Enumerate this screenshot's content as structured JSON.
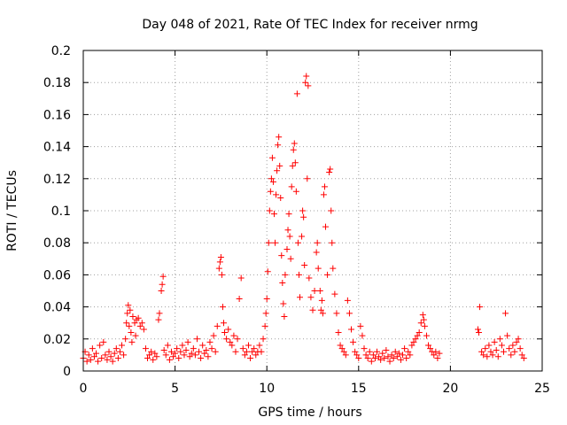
{
  "chart_data": {
    "type": "scatter",
    "title": "Day 048 of 2021, Rate Of TEC Index for receiver nrmg",
    "xlabel": "GPS time / hours",
    "ylabel": "ROTI / TECUs",
    "xlim": [
      0,
      25
    ],
    "ylim": [
      0,
      0.2
    ],
    "xticks": [
      0,
      5,
      10,
      15,
      20,
      25
    ],
    "xtick_labels": [
      "0",
      "5",
      "10",
      "15",
      "20",
      "25"
    ],
    "yticks": [
      0,
      0.02,
      0.04,
      0.06,
      0.08,
      0.1,
      0.12,
      0.14,
      0.16,
      0.18,
      0.2
    ],
    "ytick_labels": [
      "0",
      "0.02",
      "0.04",
      "0.06",
      "0.08",
      "0.1",
      "0.12",
      "0.14",
      "0.16",
      "0.18",
      "0.2"
    ],
    "grid": true,
    "marker": "plus",
    "color": "#ff0000",
    "series": [
      {
        "name": "ROTI",
        "points": [
          [
            0.0,
            0.008
          ],
          [
            0.1,
            0.012
          ],
          [
            0.2,
            0.006
          ],
          [
            0.3,
            0.01
          ],
          [
            0.4,
            0.007
          ],
          [
            0.5,
            0.014
          ],
          [
            0.6,
            0.009
          ],
          [
            0.7,
            0.011
          ],
          [
            0.8,
            0.006
          ],
          [
            0.9,
            0.016
          ],
          [
            1.0,
            0.008
          ],
          [
            1.1,
            0.018
          ],
          [
            1.2,
            0.01
          ],
          [
            1.3,
            0.007
          ],
          [
            1.4,
            0.012
          ],
          [
            1.5,
            0.009
          ],
          [
            1.6,
            0.006
          ],
          [
            1.7,
            0.011
          ],
          [
            1.8,
            0.014
          ],
          [
            1.9,
            0.008
          ],
          [
            2.0,
            0.012
          ],
          [
            2.1,
            0.016
          ],
          [
            2.2,
            0.01
          ],
          [
            2.3,
            0.02
          ],
          [
            2.35,
            0.03
          ],
          [
            2.4,
            0.036
          ],
          [
            2.45,
            0.041
          ],
          [
            2.5,
            0.028
          ],
          [
            2.55,
            0.038
          ],
          [
            2.6,
            0.024
          ],
          [
            2.65,
            0.018
          ],
          [
            2.7,
            0.034
          ],
          [
            2.8,
            0.03
          ],
          [
            2.85,
            0.022
          ],
          [
            2.9,
            0.032
          ],
          [
            3.0,
            0.033
          ],
          [
            3.1,
            0.028
          ],
          [
            3.2,
            0.03
          ],
          [
            3.3,
            0.026
          ],
          [
            3.4,
            0.014
          ],
          [
            3.5,
            0.008
          ],
          [
            3.6,
            0.01
          ],
          [
            3.7,
            0.012
          ],
          [
            3.8,
            0.007
          ],
          [
            3.9,
            0.011
          ],
          [
            4.0,
            0.009
          ],
          [
            4.1,
            0.032
          ],
          [
            4.15,
            0.036
          ],
          [
            4.25,
            0.05
          ],
          [
            4.3,
            0.054
          ],
          [
            4.35,
            0.059
          ],
          [
            4.4,
            0.013
          ],
          [
            4.5,
            0.01
          ],
          [
            4.6,
            0.016
          ],
          [
            4.7,
            0.007
          ],
          [
            4.8,
            0.012
          ],
          [
            4.9,
            0.009
          ],
          [
            5.0,
            0.011
          ],
          [
            5.1,
            0.014
          ],
          [
            5.2,
            0.008
          ],
          [
            5.3,
            0.012
          ],
          [
            5.4,
            0.016
          ],
          [
            5.5,
            0.01
          ],
          [
            5.6,
            0.013
          ],
          [
            5.7,
            0.018
          ],
          [
            5.8,
            0.009
          ],
          [
            5.9,
            0.011
          ],
          [
            6.0,
            0.014
          ],
          [
            6.1,
            0.01
          ],
          [
            6.2,
            0.02
          ],
          [
            6.3,
            0.012
          ],
          [
            6.4,
            0.008
          ],
          [
            6.5,
            0.016
          ],
          [
            6.6,
            0.011
          ],
          [
            6.7,
            0.013
          ],
          [
            6.8,
            0.009
          ],
          [
            6.9,
            0.018
          ],
          [
            7.0,
            0.014
          ],
          [
            7.1,
            0.022
          ],
          [
            7.2,
            0.012
          ],
          [
            7.3,
            0.028
          ],
          [
            7.4,
            0.064
          ],
          [
            7.45,
            0.068
          ],
          [
            7.5,
            0.071
          ],
          [
            7.55,
            0.06
          ],
          [
            7.6,
            0.04
          ],
          [
            7.65,
            0.03
          ],
          [
            7.7,
            0.024
          ],
          [
            7.8,
            0.02
          ],
          [
            7.9,
            0.026
          ],
          [
            8.0,
            0.018
          ],
          [
            8.1,
            0.016
          ],
          [
            8.2,
            0.022
          ],
          [
            8.3,
            0.012
          ],
          [
            8.4,
            0.02
          ],
          [
            8.5,
            0.045
          ],
          [
            8.6,
            0.058
          ],
          [
            8.7,
            0.014
          ],
          [
            8.8,
            0.01
          ],
          [
            8.9,
            0.012
          ],
          [
            9.0,
            0.016
          ],
          [
            9.1,
            0.008
          ],
          [
            9.2,
            0.012
          ],
          [
            9.3,
            0.014
          ],
          [
            9.4,
            0.01
          ],
          [
            9.5,
            0.012
          ],
          [
            9.6,
            0.016
          ],
          [
            9.7,
            0.012
          ],
          [
            9.8,
            0.02
          ],
          [
            9.9,
            0.028
          ],
          [
            9.95,
            0.036
          ],
          [
            10.0,
            0.045
          ],
          [
            10.05,
            0.062
          ],
          [
            10.1,
            0.08
          ],
          [
            10.15,
            0.1
          ],
          [
            10.2,
            0.112
          ],
          [
            10.25,
            0.12
          ],
          [
            10.3,
            0.133
          ],
          [
            10.35,
            0.118
          ],
          [
            10.4,
            0.098
          ],
          [
            10.45,
            0.08
          ],
          [
            10.5,
            0.11
          ],
          [
            10.55,
            0.125
          ],
          [
            10.6,
            0.141
          ],
          [
            10.65,
            0.146
          ],
          [
            10.7,
            0.128
          ],
          [
            10.75,
            0.108
          ],
          [
            10.8,
            0.072
          ],
          [
            10.85,
            0.055
          ],
          [
            10.9,
            0.042
          ],
          [
            10.95,
            0.034
          ],
          [
            11.0,
            0.06
          ],
          [
            11.1,
            0.076
          ],
          [
            11.15,
            0.088
          ],
          [
            11.2,
            0.098
          ],
          [
            11.25,
            0.084
          ],
          [
            11.3,
            0.07
          ],
          [
            11.35,
            0.115
          ],
          [
            11.4,
            0.128
          ],
          [
            11.45,
            0.138
          ],
          [
            11.5,
            0.142
          ],
          [
            11.55,
            0.13
          ],
          [
            11.6,
            0.112
          ],
          [
            11.65,
            0.173
          ],
          [
            11.7,
            0.08
          ],
          [
            11.75,
            0.06
          ],
          [
            11.8,
            0.046
          ],
          [
            11.9,
            0.084
          ],
          [
            11.95,
            0.1
          ],
          [
            12.0,
            0.096
          ],
          [
            12.05,
            0.066
          ],
          [
            12.1,
            0.18
          ],
          [
            12.15,
            0.184
          ],
          [
            12.2,
            0.12
          ],
          [
            12.25,
            0.178
          ],
          [
            12.3,
            0.058
          ],
          [
            12.4,
            0.046
          ],
          [
            12.5,
            0.038
          ],
          [
            12.6,
            0.05
          ],
          [
            12.7,
            0.074
          ],
          [
            12.75,
            0.08
          ],
          [
            12.8,
            0.064
          ],
          [
            12.9,
            0.05
          ],
          [
            12.95,
            0.038
          ],
          [
            13.0,
            0.044
          ],
          [
            13.05,
            0.036
          ],
          [
            13.1,
            0.11
          ],
          [
            13.15,
            0.115
          ],
          [
            13.2,
            0.09
          ],
          [
            13.3,
            0.06
          ],
          [
            13.4,
            0.124
          ],
          [
            13.45,
            0.126
          ],
          [
            13.5,
            0.1
          ],
          [
            13.55,
            0.08
          ],
          [
            13.6,
            0.064
          ],
          [
            13.7,
            0.048
          ],
          [
            13.8,
            0.036
          ],
          [
            13.9,
            0.024
          ],
          [
            14.0,
            0.016
          ],
          [
            14.1,
            0.014
          ],
          [
            14.2,
            0.012
          ],
          [
            14.3,
            0.01
          ],
          [
            14.4,
            0.044
          ],
          [
            14.5,
            0.036
          ],
          [
            14.6,
            0.026
          ],
          [
            14.7,
            0.018
          ],
          [
            14.8,
            0.012
          ],
          [
            14.9,
            0.01
          ],
          [
            15.0,
            0.008
          ],
          [
            15.1,
            0.028
          ],
          [
            15.2,
            0.022
          ],
          [
            15.3,
            0.014
          ],
          [
            15.4,
            0.01
          ],
          [
            15.5,
            0.008
          ],
          [
            15.6,
            0.012
          ],
          [
            15.7,
            0.006
          ],
          [
            15.8,
            0.01
          ],
          [
            15.9,
            0.008
          ],
          [
            16.0,
            0.012
          ],
          [
            16.1,
            0.009
          ],
          [
            16.2,
            0.007
          ],
          [
            16.3,
            0.011
          ],
          [
            16.4,
            0.008
          ],
          [
            16.5,
            0.013
          ],
          [
            16.6,
            0.009
          ],
          [
            16.7,
            0.006
          ],
          [
            16.8,
            0.01
          ],
          [
            16.9,
            0.008
          ],
          [
            17.0,
            0.012
          ],
          [
            17.1,
            0.009
          ],
          [
            17.2,
            0.011
          ],
          [
            17.3,
            0.007
          ],
          [
            17.4,
            0.01
          ],
          [
            17.5,
            0.014
          ],
          [
            17.6,
            0.008
          ],
          [
            17.7,
            0.012
          ],
          [
            17.8,
            0.01
          ],
          [
            17.9,
            0.016
          ],
          [
            18.0,
            0.018
          ],
          [
            18.1,
            0.02
          ],
          [
            18.2,
            0.022
          ],
          [
            18.3,
            0.024
          ],
          [
            18.4,
            0.03
          ],
          [
            18.5,
            0.035
          ],
          [
            18.55,
            0.032
          ],
          [
            18.6,
            0.028
          ],
          [
            18.7,
            0.022
          ],
          [
            18.8,
            0.016
          ],
          [
            18.9,
            0.014
          ],
          [
            19.0,
            0.012
          ],
          [
            19.1,
            0.01
          ],
          [
            19.2,
            0.012
          ],
          [
            19.3,
            0.008
          ],
          [
            19.4,
            0.011
          ],
          [
            21.5,
            0.026
          ],
          [
            21.55,
            0.024
          ],
          [
            21.6,
            0.04
          ],
          [
            21.7,
            0.012
          ],
          [
            21.8,
            0.01
          ],
          [
            21.9,
            0.014
          ],
          [
            22.0,
            0.009
          ],
          [
            22.1,
            0.016
          ],
          [
            22.2,
            0.012
          ],
          [
            22.3,
            0.01
          ],
          [
            22.4,
            0.018
          ],
          [
            22.5,
            0.013
          ],
          [
            22.6,
            0.009
          ],
          [
            22.7,
            0.02
          ],
          [
            22.8,
            0.016
          ],
          [
            22.9,
            0.012
          ],
          [
            23.0,
            0.036
          ],
          [
            23.1,
            0.022
          ],
          [
            23.2,
            0.014
          ],
          [
            23.3,
            0.01
          ],
          [
            23.4,
            0.016
          ],
          [
            23.5,
            0.012
          ],
          [
            23.6,
            0.018
          ],
          [
            23.7,
            0.02
          ],
          [
            23.8,
            0.014
          ],
          [
            23.9,
            0.01
          ],
          [
            24.0,
            0.008
          ]
        ]
      }
    ]
  }
}
